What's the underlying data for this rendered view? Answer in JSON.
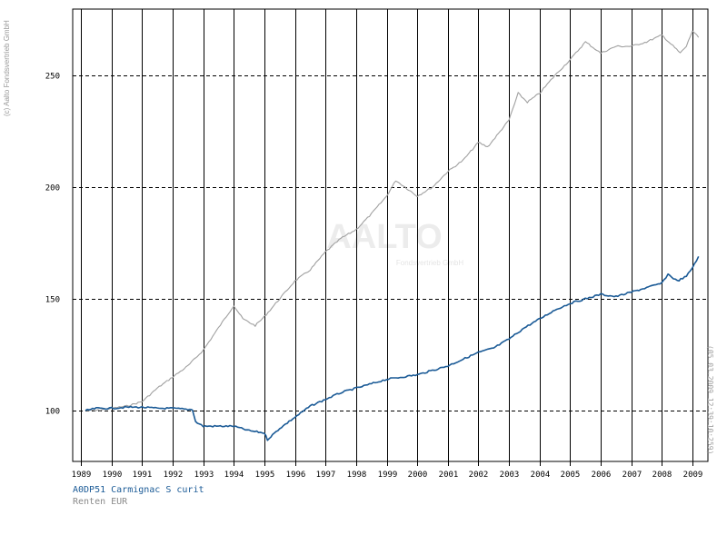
{
  "copyright": "(c) Aalto Fondsvertrieb GmbH",
  "timestamp": "(05.03.2009 12:39:10:259)",
  "watermark": {
    "brand": "AALTO",
    "sub": "Fondsvertrieb GmbH"
  },
  "chart_data": {
    "type": "line",
    "title": "",
    "xlabel": "",
    "ylabel": "",
    "x_ticks": [
      "1989",
      "1990",
      "1991",
      "1992",
      "1993",
      "1994",
      "1995",
      "1996",
      "1997",
      "1998",
      "1999",
      "2000",
      "2001",
      "2002",
      "2003",
      "2004",
      "2005",
      "2006",
      "2007",
      "2008",
      "2009"
    ],
    "y_ticks": [
      100,
      150,
      200,
      250
    ],
    "xlim": [
      1989,
      2009.3
    ],
    "ylim": [
      78,
      282
    ],
    "grid": true,
    "legend": "bottom-left",
    "series": [
      {
        "name": "A0DP51 Carmignac S curit",
        "color": "#1a5a96",
        "x": [
          1989.15,
          1989.5,
          1990,
          1990.5,
          1991,
          1991.5,
          1992,
          1992.5,
          1992.65,
          1992.75,
          1993,
          1993.5,
          1994,
          1994.5,
          1995,
          1995.1,
          1995.5,
          1996,
          1996.5,
          1997,
          1997.5,
          1998,
          1998.5,
          1999,
          1999.5,
          2000,
          2000.5,
          2001,
          2001.5,
          2002,
          2002.5,
          2003,
          2003.5,
          2004,
          2004.5,
          2005,
          2005.5,
          2006,
          2006.5,
          2007,
          2007.5,
          2008,
          2008.2,
          2008.5,
          2008.8,
          2009,
          2009.2
        ],
        "y": [
          100,
          101,
          101,
          101.5,
          101.5,
          101,
          101,
          100.5,
          100.5,
          95,
          93,
          93,
          93,
          91,
          90,
          87,
          92,
          97,
          102,
          105,
          108,
          110,
          112,
          114,
          115,
          116,
          118,
          120,
          123,
          126,
          128,
          132,
          137,
          141,
          145,
          148,
          150,
          152,
          151,
          153,
          155,
          157,
          161,
          158,
          160,
          164,
          169
        ]
      },
      {
        "name": "Renten EUR",
        "color": "#a0a0a0",
        "x": [
          1989.15,
          1989.5,
          1990,
          1990.5,
          1991,
          1991.5,
          1992,
          1992.5,
          1993,
          1993.5,
          1994,
          1994.3,
          1994.7,
          1995,
          1995.5,
          1996,
          1996.5,
          1997,
          1997.5,
          1998,
          1998.5,
          1999,
          1999.3,
          1999.6,
          2000,
          2000.5,
          2001,
          2001.5,
          2002,
          2002.3,
          2002.6,
          2003,
          2003.3,
          2003.6,
          2004,
          2004.5,
          2005,
          2005.5,
          2005.8,
          2006,
          2006.5,
          2007,
          2007.5,
          2008,
          2008.3,
          2008.6,
          2008.8,
          2009,
          2009.2
        ],
        "y": [
          100,
          100,
          101,
          102,
          104,
          110,
          115,
          120,
          127,
          137,
          147,
          141,
          138,
          142,
          150,
          158,
          163,
          171,
          177,
          181,
          188,
          196,
          203,
          200,
          196,
          200,
          207,
          212,
          220,
          218,
          223,
          230,
          242,
          238,
          242,
          250,
          257,
          265,
          262,
          260,
          263,
          263,
          265,
          268,
          264,
          260,
          263,
          270,
          267
        ]
      }
    ]
  }
}
